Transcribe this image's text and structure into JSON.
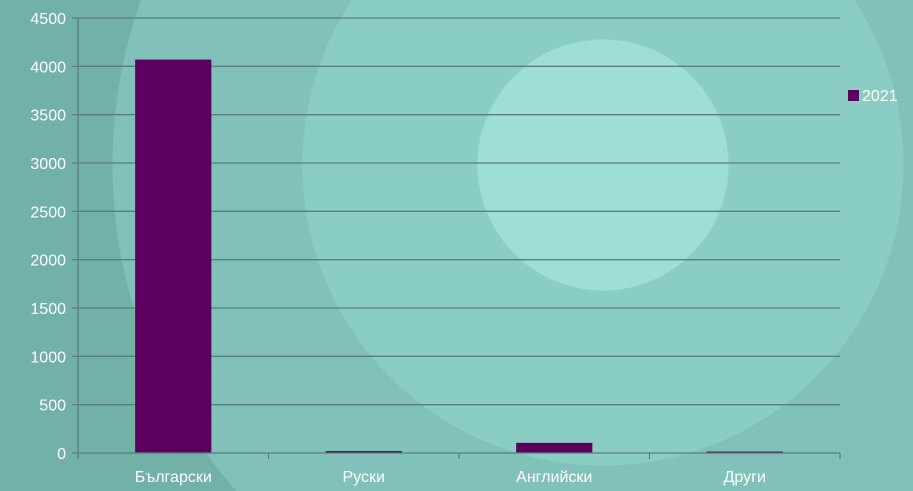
{
  "colors": {
    "bar": "#5c0060",
    "gridline": "#5a7f79",
    "axis": "#5a7f79",
    "text": "#ffffff"
  },
  "chart_data": {
    "type": "bar",
    "categories": [
      "Български",
      "Руски",
      "Английски",
      "Други"
    ],
    "series": [
      {
        "name": "2021",
        "values": [
          4070,
          20,
          105,
          15
        ]
      }
    ],
    "ylim": [
      0,
      4500
    ],
    "yticks": [
      0,
      500,
      1000,
      1500,
      2000,
      2500,
      3000,
      3500,
      4000,
      4500
    ],
    "grid": true,
    "legend": "right"
  }
}
